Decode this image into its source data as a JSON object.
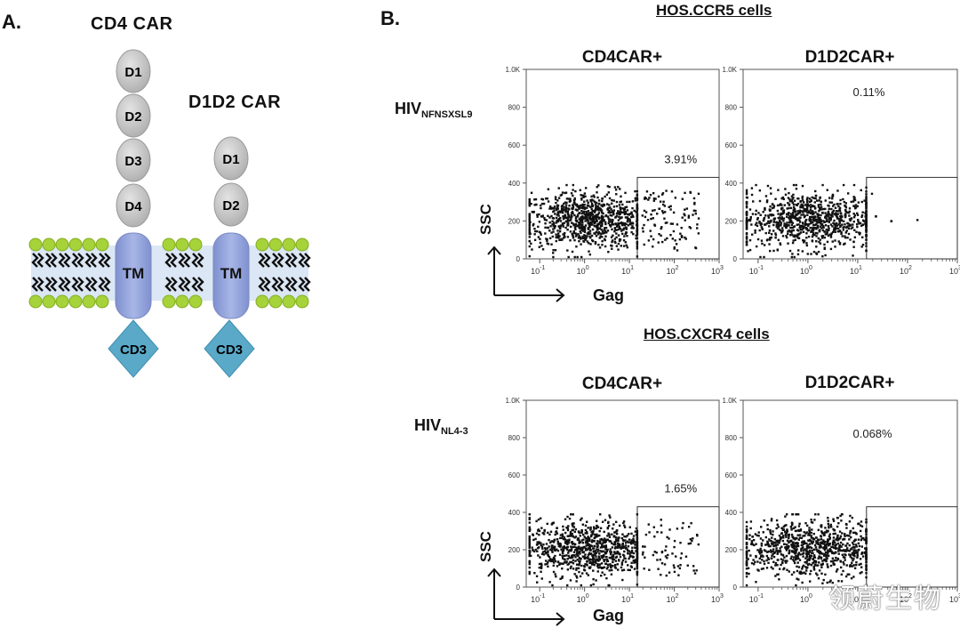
{
  "panel_a": {
    "letter": "A.",
    "cd4_car": {
      "title": "CD4 CAR",
      "domains": [
        "D1",
        "D2",
        "D3",
        "D4"
      ],
      "tm": "TM",
      "signal": "CD3"
    },
    "d1d2_car": {
      "title": "D1D2 CAR",
      "domains": [
        "D1",
        "D2"
      ],
      "tm": "TM",
      "signal": "CD3"
    },
    "colors": {
      "domain": "#c4c4c4",
      "tm": "#8f9fd6",
      "cd3": "#5aa9c9",
      "lipid_head": "#a6d23a",
      "membrane_core": "#dce8f5"
    }
  },
  "panel_b": {
    "letter": "B.",
    "rows": [
      {
        "section_title": "HOS.CCR5 cells",
        "virus_main": "HIV",
        "virus_sub": "NFNSXSL9",
        "plots": [
          {
            "title": "CD4CAR+",
            "gate_percent": "3.91%"
          },
          {
            "title": "D1D2CAR+",
            "gate_percent": "0.11%"
          }
        ]
      },
      {
        "section_title": "HOS.CXCR4 cells",
        "virus_main": "HIV",
        "virus_sub": "NL4-3",
        "plots": [
          {
            "title": "CD4CAR+",
            "gate_percent": "1.65%"
          },
          {
            "title": "D1D2CAR+",
            "gate_percent": "0.068%"
          }
        ]
      }
    ],
    "axes": {
      "x_label": "Gag",
      "y_label": "SSC",
      "y_ticks": [
        "1.0K",
        "800",
        "600",
        "400",
        "200",
        "0"
      ],
      "x_ticks": [
        {
          "base": "10",
          "exp": "-1"
        },
        {
          "base": "10",
          "exp": "0"
        },
        {
          "base": "10",
          "exp": "1"
        },
        {
          "base": "10",
          "exp": "2"
        },
        {
          "base": "10",
          "exp": "3"
        }
      ]
    }
  },
  "chart_data": [
    {
      "type": "scatter",
      "title": "CD4CAR+ (HOS.CCR5 cells, HIV NFNSXSL9)",
      "xlabel": "Gag",
      "ylabel": "SSC",
      "x_scale": "log",
      "xlim": [
        0.05,
        1000
      ],
      "ylim": [
        0,
        1000
      ],
      "gate": {
        "x": [
          15,
          1000
        ],
        "y": [
          0,
          430
        ]
      },
      "gate_percent": 3.91
    },
    {
      "type": "scatter",
      "title": "D1D2CAR+ (HOS.CCR5 cells, HIV NFNSXSL9)",
      "xlabel": "Gag",
      "ylabel": "SSC",
      "x_scale": "log",
      "xlim": [
        0.05,
        1000
      ],
      "ylim": [
        0,
        1000
      ],
      "gate": {
        "x": [
          15,
          1000
        ],
        "y": [
          0,
          430
        ]
      },
      "gate_percent": 0.11
    },
    {
      "type": "scatter",
      "title": "CD4CAR+ (HOS.CXCR4 cells, HIV NL4-3)",
      "xlabel": "Gag",
      "ylabel": "SSC",
      "x_scale": "log",
      "xlim": [
        0.05,
        1000
      ],
      "ylim": [
        0,
        1000
      ],
      "gate": {
        "x": [
          15,
          1000
        ],
        "y": [
          0,
          430
        ]
      },
      "gate_percent": 1.65
    },
    {
      "type": "scatter",
      "title": "D1D2CAR+ (HOS.CXCR4 cells, HIV NL4-3)",
      "xlabel": "Gag",
      "ylabel": "SSC",
      "x_scale": "log",
      "xlim": [
        0.05,
        1000
      ],
      "ylim": [
        0,
        1000
      ],
      "gate": {
        "x": [
          15,
          1000
        ],
        "y": [
          0,
          430
        ]
      },
      "gate_percent": 0.068
    }
  ],
  "watermark": "领蔚生物"
}
